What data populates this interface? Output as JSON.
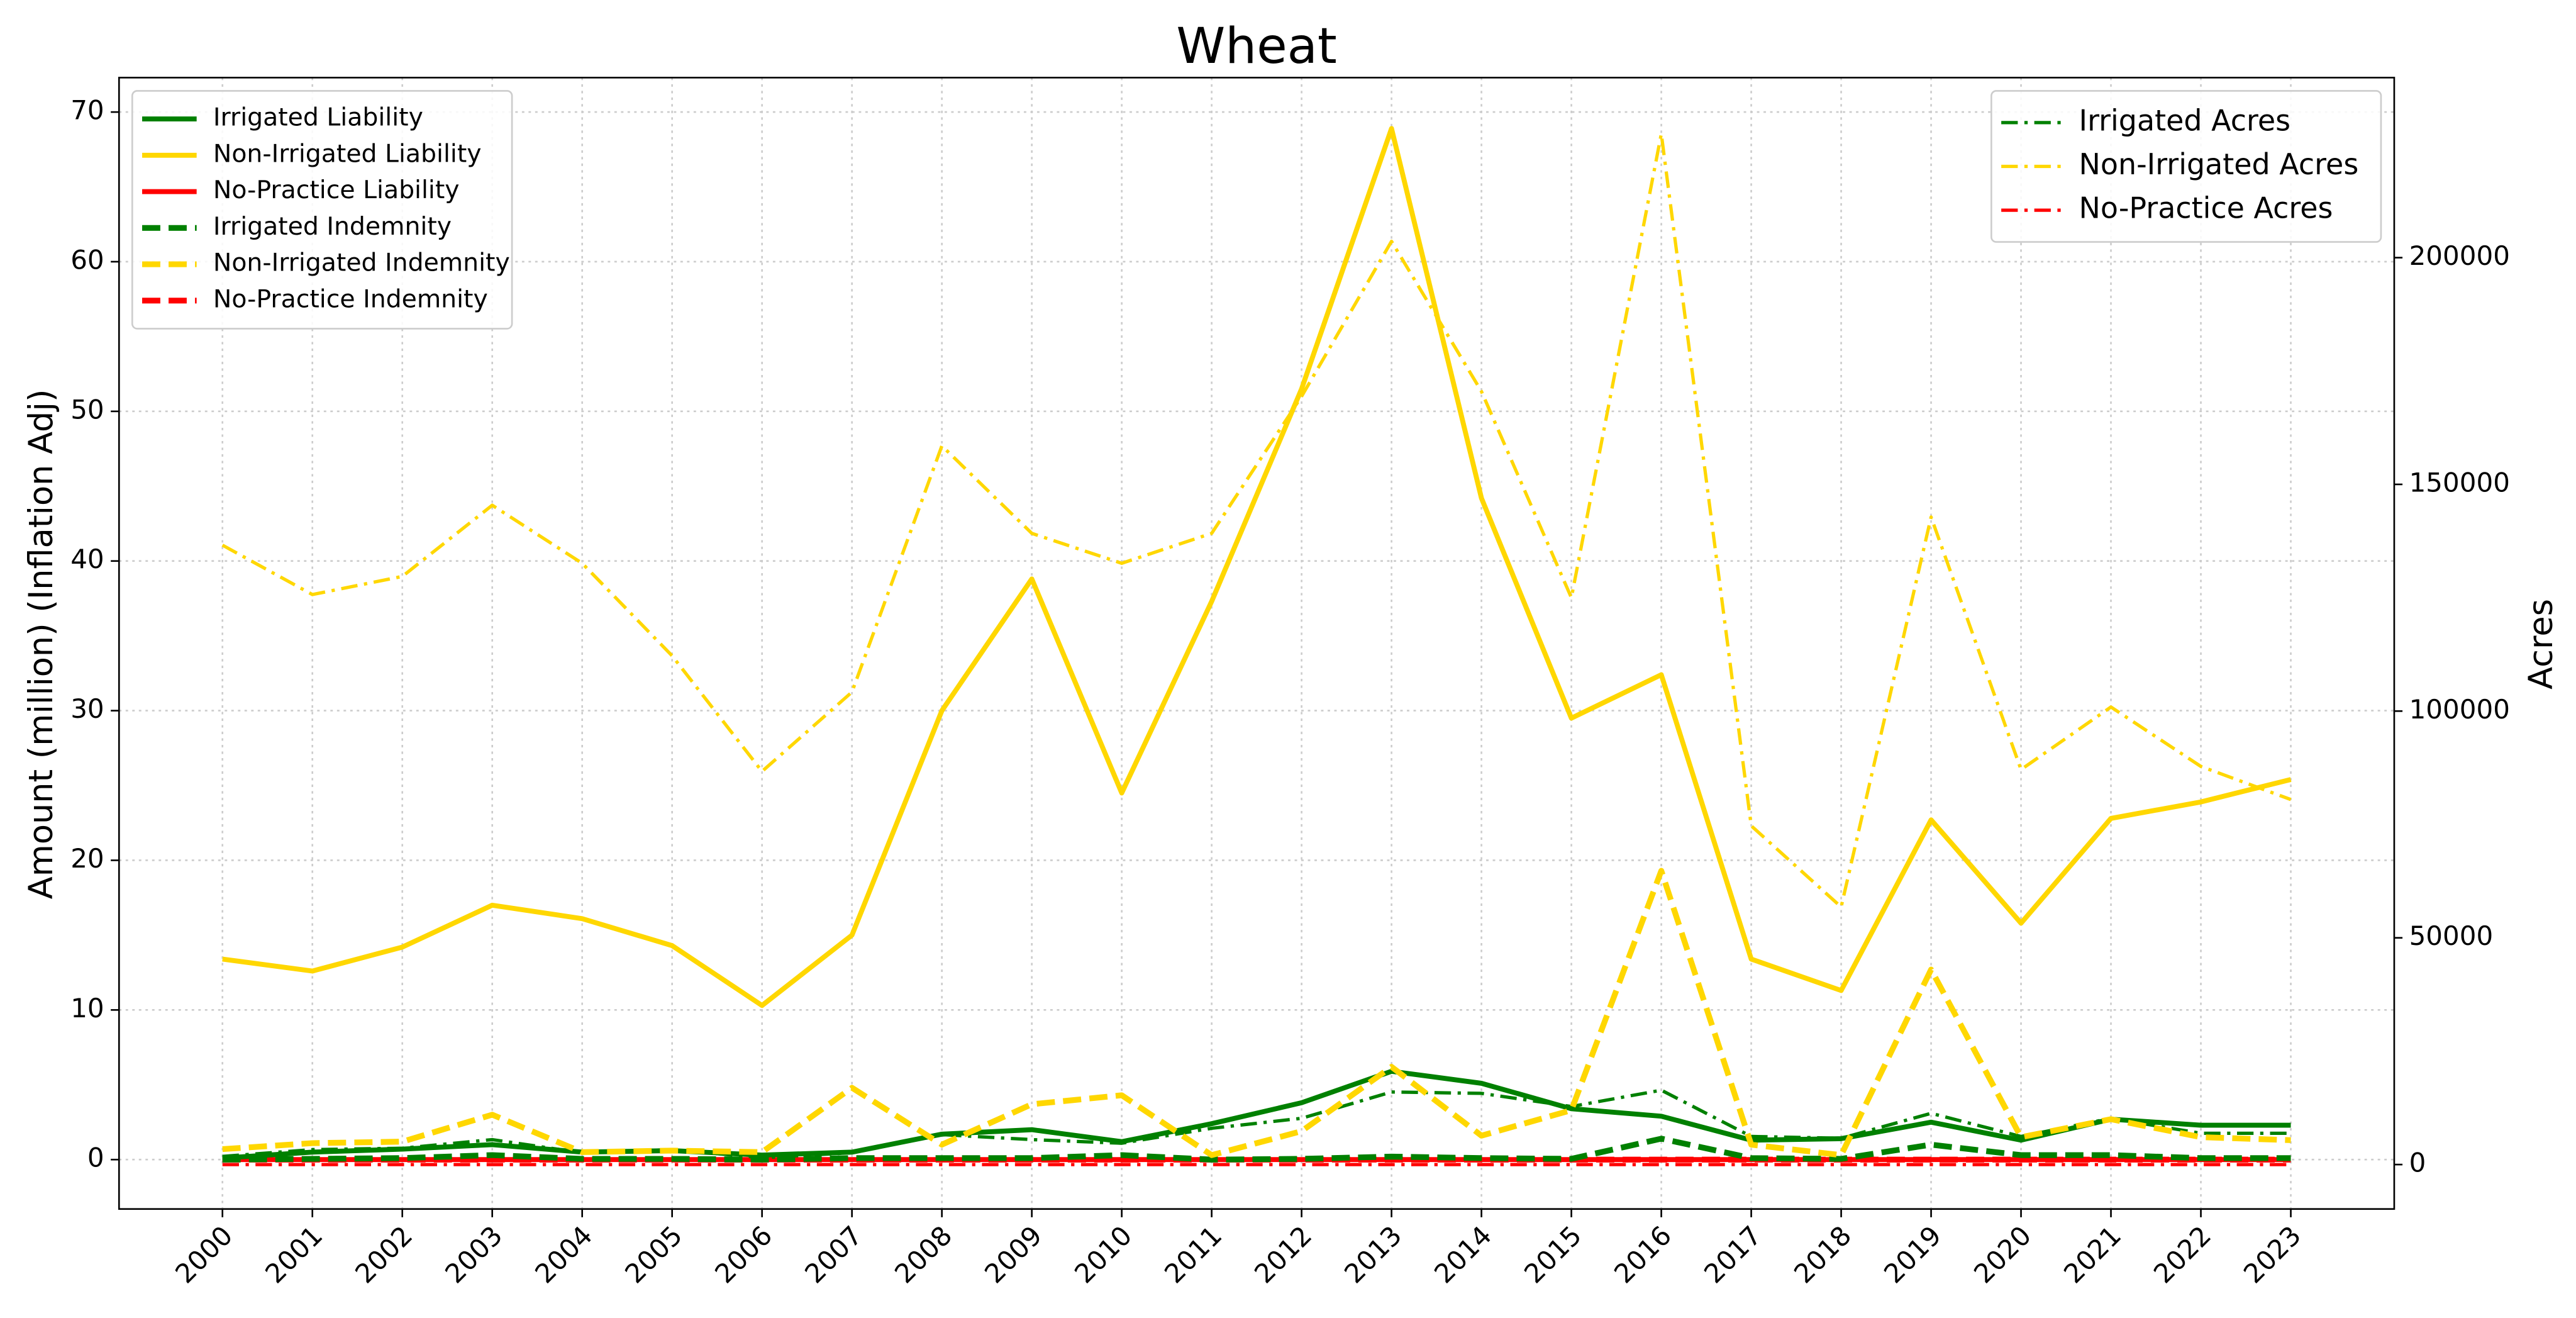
{
  "chart_data": {
    "type": "line",
    "title": "Wheat",
    "ylabel": "Amount (million) (Inflation Adj)",
    "y2label": "Acres",
    "x": [
      2000,
      2001,
      2002,
      2003,
      2004,
      2005,
      2006,
      2007,
      2008,
      2009,
      2010,
      2011,
      2012,
      2013,
      2014,
      2015,
      2016,
      2017,
      2018,
      2019,
      2020,
      2021,
      2022,
      2023
    ],
    "xlim": [
      1998.85,
      2024.15
    ],
    "xticks": [
      2000,
      2001,
      2002,
      2003,
      2004,
      2005,
      2006,
      2007,
      2008,
      2009,
      2010,
      2011,
      2012,
      2013,
      2014,
      2015,
      2016,
      2017,
      2018,
      2019,
      2020,
      2021,
      2022,
      2023
    ],
    "ylim": [
      -3.3,
      72.3
    ],
    "yticks": [
      0,
      10,
      20,
      30,
      40,
      50,
      60,
      70
    ],
    "y2lim": [
      -9800,
      239700
    ],
    "y2ticks": [
      0,
      50000,
      100000,
      150000,
      200000
    ],
    "grid": true,
    "legend": "upper left",
    "legend2": "upper right",
    "series": [
      {
        "name": "Irrigated Liability",
        "color": "#008000",
        "style": "solid",
        "axis": "y",
        "values": [
          0.1,
          0.5,
          0.7,
          1.0,
          0.5,
          0.6,
          0.3,
          0.5,
          1.7,
          2.0,
          1.2,
          2.4,
          3.8,
          5.9,
          5.1,
          3.4,
          2.9,
          1.3,
          1.4,
          2.5,
          1.3,
          2.7,
          2.3,
          2.3
        ]
      },
      {
        "name": "Non-Irrigated Liability",
        "color": "#ffd700",
        "style": "solid",
        "axis": "y",
        "values": [
          13.4,
          12.6,
          14.2,
          17.0,
          16.1,
          14.3,
          10.3,
          15.0,
          30.0,
          38.8,
          24.5,
          37.3,
          51.5,
          68.9,
          44.2,
          29.5,
          32.4,
          13.4,
          11.3,
          22.7,
          15.8,
          22.8,
          23.9,
          25.4
        ]
      },
      {
        "name": "No-Practice Liability",
        "color": "#ff0000",
        "style": "solid",
        "axis": "y",
        "values": [
          0,
          0,
          0,
          0,
          0,
          0,
          0,
          0,
          0,
          0,
          0,
          0,
          0,
          0,
          0,
          0,
          0,
          0,
          0,
          0,
          0,
          0,
          0,
          0
        ]
      },
      {
        "name": "Irrigated Indemnity",
        "color": "#008000",
        "style": "dashed",
        "axis": "y",
        "values": [
          0.0,
          0.05,
          0.1,
          0.3,
          0.05,
          0.05,
          0.0,
          0.1,
          0.1,
          0.1,
          0.3,
          0.0,
          0.05,
          0.2,
          0.1,
          0.05,
          1.4,
          0.1,
          0.05,
          1.0,
          0.3,
          0.3,
          0.1,
          0.1
        ]
      },
      {
        "name": "Non-Irrigated Indemnity",
        "color": "#ffd700",
        "style": "dashed",
        "axis": "y",
        "values": [
          0.7,
          1.1,
          1.2,
          3.0,
          0.5,
          0.6,
          0.5,
          4.8,
          1.0,
          3.7,
          4.3,
          0.3,
          1.9,
          6.2,
          1.6,
          3.3,
          19.3,
          1.0,
          0.3,
          12.7,
          1.5,
          2.7,
          1.5,
          1.3
        ]
      },
      {
        "name": "No-Practice Indemnity",
        "color": "#ff0000",
        "style": "dashed",
        "axis": "y",
        "values": [
          0,
          0,
          0,
          0,
          0,
          0,
          0,
          0,
          0,
          0,
          0,
          0,
          0,
          0,
          0,
          0,
          0,
          0,
          0,
          0,
          0,
          0,
          0,
          0
        ]
      },
      {
        "name": "Irrigated Acres",
        "color": "#008000",
        "style": "dashdot",
        "axis": "y2",
        "values": [
          1800,
          3300,
          3600,
          5500,
          2600,
          3300,
          1500,
          2600,
          6600,
          5500,
          4700,
          8000,
          10200,
          16000,
          15700,
          12800,
          16400,
          6200,
          5800,
          11300,
          6200,
          10200,
          6900,
          6900
        ]
      },
      {
        "name": "Non-Irrigated Acres",
        "color": "#ffd700",
        "style": "dashdot",
        "axis": "y2",
        "values": [
          136600,
          125700,
          129700,
          145400,
          132600,
          112200,
          86700,
          104200,
          158500,
          139200,
          132600,
          139200,
          169400,
          203600,
          170500,
          125000,
          227300,
          74700,
          56800,
          142800,
          87100,
          100900,
          87800,
          80500
        ]
      },
      {
        "name": "No-Practice Acres",
        "color": "#ff0000",
        "style": "dashdot",
        "axis": "y2",
        "values": [
          0,
          0,
          0,
          0,
          0,
          0,
          0,
          0,
          0,
          0,
          0,
          0,
          0,
          0,
          0,
          0,
          0,
          0,
          0,
          0,
          0,
          0,
          0,
          0
        ]
      }
    ]
  }
}
